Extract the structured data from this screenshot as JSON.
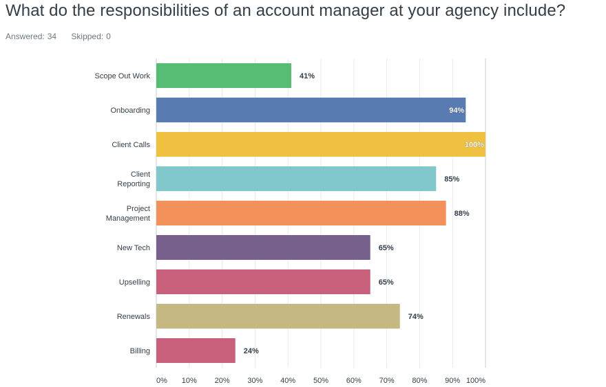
{
  "question": {
    "title": "What do the responsibilities of an account manager at your agency include?",
    "answered_label": "Answered:",
    "answered_count": "34",
    "skipped_label": "Skipped:",
    "skipped_count": "0"
  },
  "chart_data": {
    "type": "bar",
    "orientation": "horizontal",
    "title": "",
    "xlabel": "",
    "ylabel": "",
    "xlim": [
      0,
      100
    ],
    "grid": true,
    "categories": [
      "Scope Out Work",
      "Onboarding",
      "Client Calls",
      "Client Reporting",
      "Project Management",
      "New Tech",
      "Upselling",
      "Renewals",
      "Billing"
    ],
    "category_lines": [
      [
        "Scope Out Work"
      ],
      [
        "Onboarding"
      ],
      [
        "Client Calls"
      ],
      [
        "Client",
        "Reporting"
      ],
      [
        "Project",
        "Management"
      ],
      [
        "New Tech"
      ],
      [
        "Upselling"
      ],
      [
        "Renewals"
      ],
      [
        "Billing"
      ]
    ],
    "values": [
      41,
      94,
      100,
      85,
      88,
      65,
      65,
      74,
      24
    ],
    "value_labels": [
      "41%",
      "94%",
      "100%",
      "85%",
      "88%",
      "65%",
      "65%",
      "74%",
      "24%"
    ],
    "colors": [
      "#57bd75",
      "#587bb1",
      "#f0c040",
      "#81c8cd",
      "#f2925a",
      "#77608b",
      "#c85f7b",
      "#c6b883",
      "#c85f7b"
    ],
    "ticks": [
      0,
      10,
      20,
      30,
      40,
      50,
      60,
      70,
      80,
      90,
      100
    ],
    "tick_labels": [
      "0%",
      "10%",
      "20%",
      "30%",
      "40%",
      "50%",
      "60%",
      "70%",
      "80%",
      "90%",
      "100%"
    ]
  }
}
